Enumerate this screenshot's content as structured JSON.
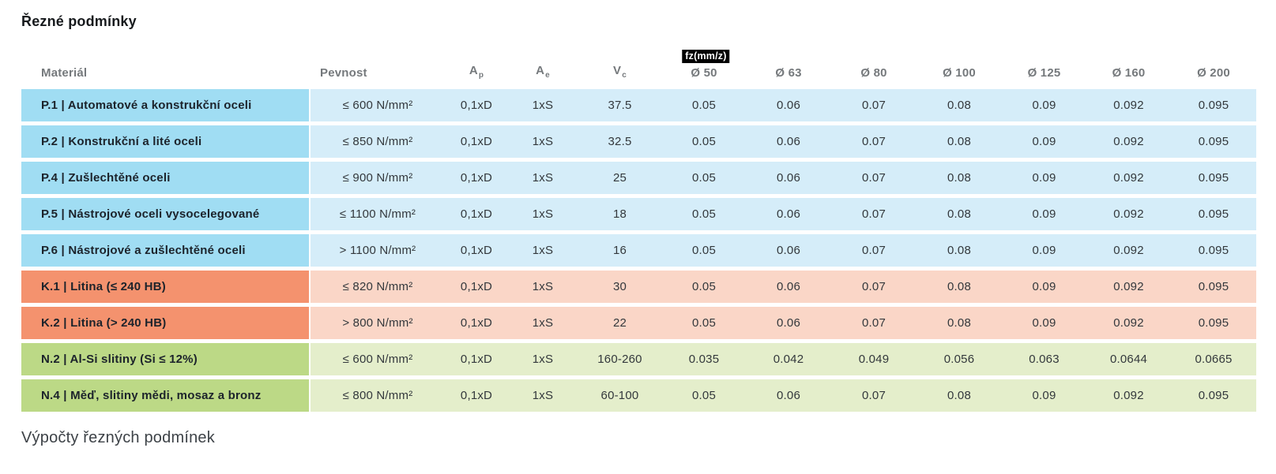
{
  "page": {
    "title": "Řezné podmínky",
    "section_heading": "Výpočty řezných podmínek"
  },
  "colors": {
    "row-blue": "#a0ddf3",
    "row-blue-light": "#d5edf9",
    "row-orange": "#f4926e",
    "row-orange-light": "#fad6c7",
    "row-green": "#bcd986",
    "row-green-light": "#e4eecb",
    "badge-bg": "#000000",
    "badge-text": "#ffffff"
  },
  "table": {
    "fz_badge": "fz(mm/z)",
    "columns": [
      {
        "key": "material",
        "label": "Materiál"
      },
      {
        "key": "pevnost",
        "label": "Pevnost"
      },
      {
        "key": "ap",
        "label": "A",
        "sub": "p"
      },
      {
        "key": "ae",
        "label": "A",
        "sub": "e"
      },
      {
        "key": "vc",
        "label": "V",
        "sub": "c"
      },
      {
        "key": "d50",
        "label": "Ø 50",
        "badge": true
      },
      {
        "key": "d63",
        "label": "Ø 63"
      },
      {
        "key": "d80",
        "label": "Ø 80"
      },
      {
        "key": "d100",
        "label": "Ø 100"
      },
      {
        "key": "d125",
        "label": "Ø 125"
      },
      {
        "key": "d160",
        "label": "Ø 160"
      },
      {
        "key": "d200",
        "label": "Ø 200"
      }
    ],
    "rows": [
      {
        "group": "steel",
        "cells": {
          "material": "P.1 | Automatové a konstrukční oceli",
          "pevnost": "≤ 600 N/mm²",
          "ap": "0,1xD",
          "ae": "1xS",
          "vc": "37.5",
          "d50": "0.05",
          "d63": "0.06",
          "d80": "0.07",
          "d100": "0.08",
          "d125": "0.09",
          "d160": "0.092",
          "d200": "0.095"
        }
      },
      {
        "group": "steel",
        "cells": {
          "material": "P.2 | Konstrukční a lité oceli",
          "pevnost": "≤ 850 N/mm²",
          "ap": "0,1xD",
          "ae": "1xS",
          "vc": "32.5",
          "d50": "0.05",
          "d63": "0.06",
          "d80": "0.07",
          "d100": "0.08",
          "d125": "0.09",
          "d160": "0.092",
          "d200": "0.095"
        }
      },
      {
        "group": "steel",
        "cells": {
          "material": "P.4 | Zušlechtěné oceli",
          "pevnost": "≤ 900 N/mm²",
          "ap": "0,1xD",
          "ae": "1xS",
          "vc": "25",
          "d50": "0.05",
          "d63": "0.06",
          "d80": "0.07",
          "d100": "0.08",
          "d125": "0.09",
          "d160": "0.092",
          "d200": "0.095"
        }
      },
      {
        "group": "steel",
        "cells": {
          "material": "P.5 | Nástrojové oceli vysocelegované",
          "pevnost": "≤ 1100 N/mm²",
          "ap": "0,1xD",
          "ae": "1xS",
          "vc": "18",
          "d50": "0.05",
          "d63": "0.06",
          "d80": "0.07",
          "d100": "0.08",
          "d125": "0.09",
          "d160": "0.092",
          "d200": "0.095"
        }
      },
      {
        "group": "steel",
        "cells": {
          "material": "P.6 | Nástrojové a zušlechtěné oceli",
          "pevnost": "> 1100 N/mm²",
          "ap": "0,1xD",
          "ae": "1xS",
          "vc": "16",
          "d50": "0.05",
          "d63": "0.06",
          "d80": "0.07",
          "d100": "0.08",
          "d125": "0.09",
          "d160": "0.092",
          "d200": "0.095"
        }
      },
      {
        "group": "cast-iron",
        "cells": {
          "material": "K.1 | Litina (≤ 240 HB)",
          "pevnost": "≤ 820 N/mm²",
          "ap": "0,1xD",
          "ae": "1xS",
          "vc": "30",
          "d50": "0.05",
          "d63": "0.06",
          "d80": "0.07",
          "d100": "0.08",
          "d125": "0.09",
          "d160": "0.092",
          "d200": "0.095"
        }
      },
      {
        "group": "cast-iron",
        "cells": {
          "material": "K.2 | Litina (> 240 HB)",
          "pevnost": "> 800 N/mm²",
          "ap": "0,1xD",
          "ae": "1xS",
          "vc": "22",
          "d50": "0.05",
          "d63": "0.06",
          "d80": "0.07",
          "d100": "0.08",
          "d125": "0.09",
          "d160": "0.092",
          "d200": "0.095"
        }
      },
      {
        "group": "nonferrous",
        "cells": {
          "material": "N.2 | Al-Si slitiny (Si ≤ 12%)",
          "pevnost": "≤ 600 N/mm²",
          "ap": "0,1xD",
          "ae": "1xS",
          "vc": "160-260",
          "d50": "0.035",
          "d63": "0.042",
          "d80": "0.049",
          "d100": "0.056",
          "d125": "0.063",
          "d160": "0.0644",
          "d200": "0.0665"
        }
      },
      {
        "group": "nonferrous",
        "cells": {
          "material": "N.4 | Měď, slitiny mědi, mosaz a bronz",
          "pevnost": "≤ 800 N/mm²",
          "ap": "0,1xD",
          "ae": "1xS",
          "vc": "60-100",
          "d50": "0.05",
          "d63": "0.06",
          "d80": "0.07",
          "d100": "0.08",
          "d125": "0.09",
          "d160": "0.092",
          "d200": "0.095"
        }
      }
    ]
  }
}
